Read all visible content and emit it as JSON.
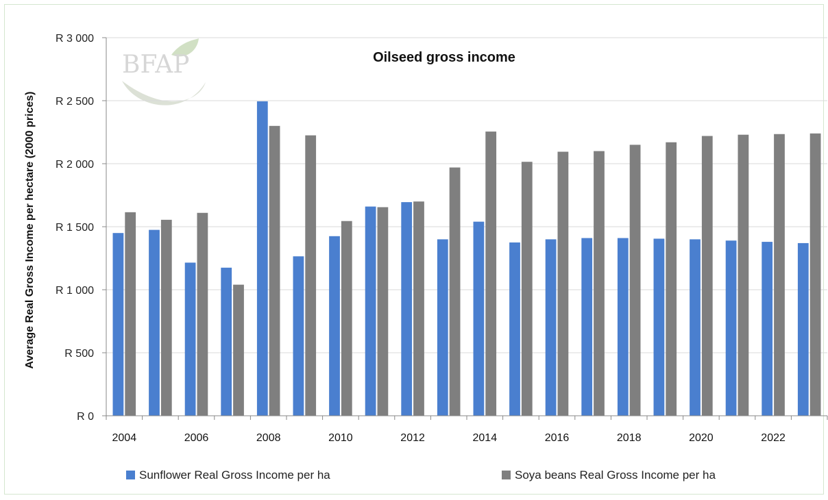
{
  "chart_data": {
    "type": "bar",
    "title": "Oilseed gross income",
    "ylabel": "Average Real Gross Income per hectare (2000 prices)",
    "xlabel": "",
    "ylim": [
      0,
      3000
    ],
    "y_ticks": [
      {
        "value": 0,
        "label": "R 0"
      },
      {
        "value": 500,
        "label": "R 500"
      },
      {
        "value": 1000,
        "label": "R 1 000"
      },
      {
        "value": 1500,
        "label": "R 1 500"
      },
      {
        "value": 2000,
        "label": "R 2 000"
      },
      {
        "value": 2500,
        "label": "R 2 500"
      },
      {
        "value": 3000,
        "label": "R 3 000"
      }
    ],
    "categories": [
      "2004",
      "2005",
      "2006",
      "2007",
      "2008",
      "2009",
      "2010",
      "2011",
      "2012",
      "2013",
      "2014",
      "2015",
      "2016",
      "2017",
      "2018",
      "2019",
      "2020",
      "2021",
      "2022",
      "2023"
    ],
    "x_tick_labels": [
      "2004",
      "2006",
      "2008",
      "2010",
      "2012",
      "2014",
      "2016",
      "2018",
      "2020",
      "2022"
    ],
    "series": [
      {
        "name": "Sunflower Real Gross Income per ha",
        "color": "#4a7fcf",
        "values": [
          1450,
          1475,
          1215,
          1175,
          2495,
          1265,
          1425,
          1660,
          1695,
          1400,
          1540,
          1375,
          1400,
          1410,
          1410,
          1405,
          1400,
          1390,
          1380,
          1370
        ]
      },
      {
        "name": "Soya beans Real Gross Income per ha",
        "color": "#7f7f7f",
        "values": [
          1615,
          1555,
          1610,
          1040,
          2300,
          2225,
          1545,
          1655,
          1700,
          1970,
          2255,
          2015,
          2095,
          2100,
          2150,
          2170,
          2220,
          2230,
          2235,
          2240
        ]
      }
    ],
    "legend_position": "bottom",
    "grid": true
  },
  "watermark": {
    "text": "BFAP"
  }
}
